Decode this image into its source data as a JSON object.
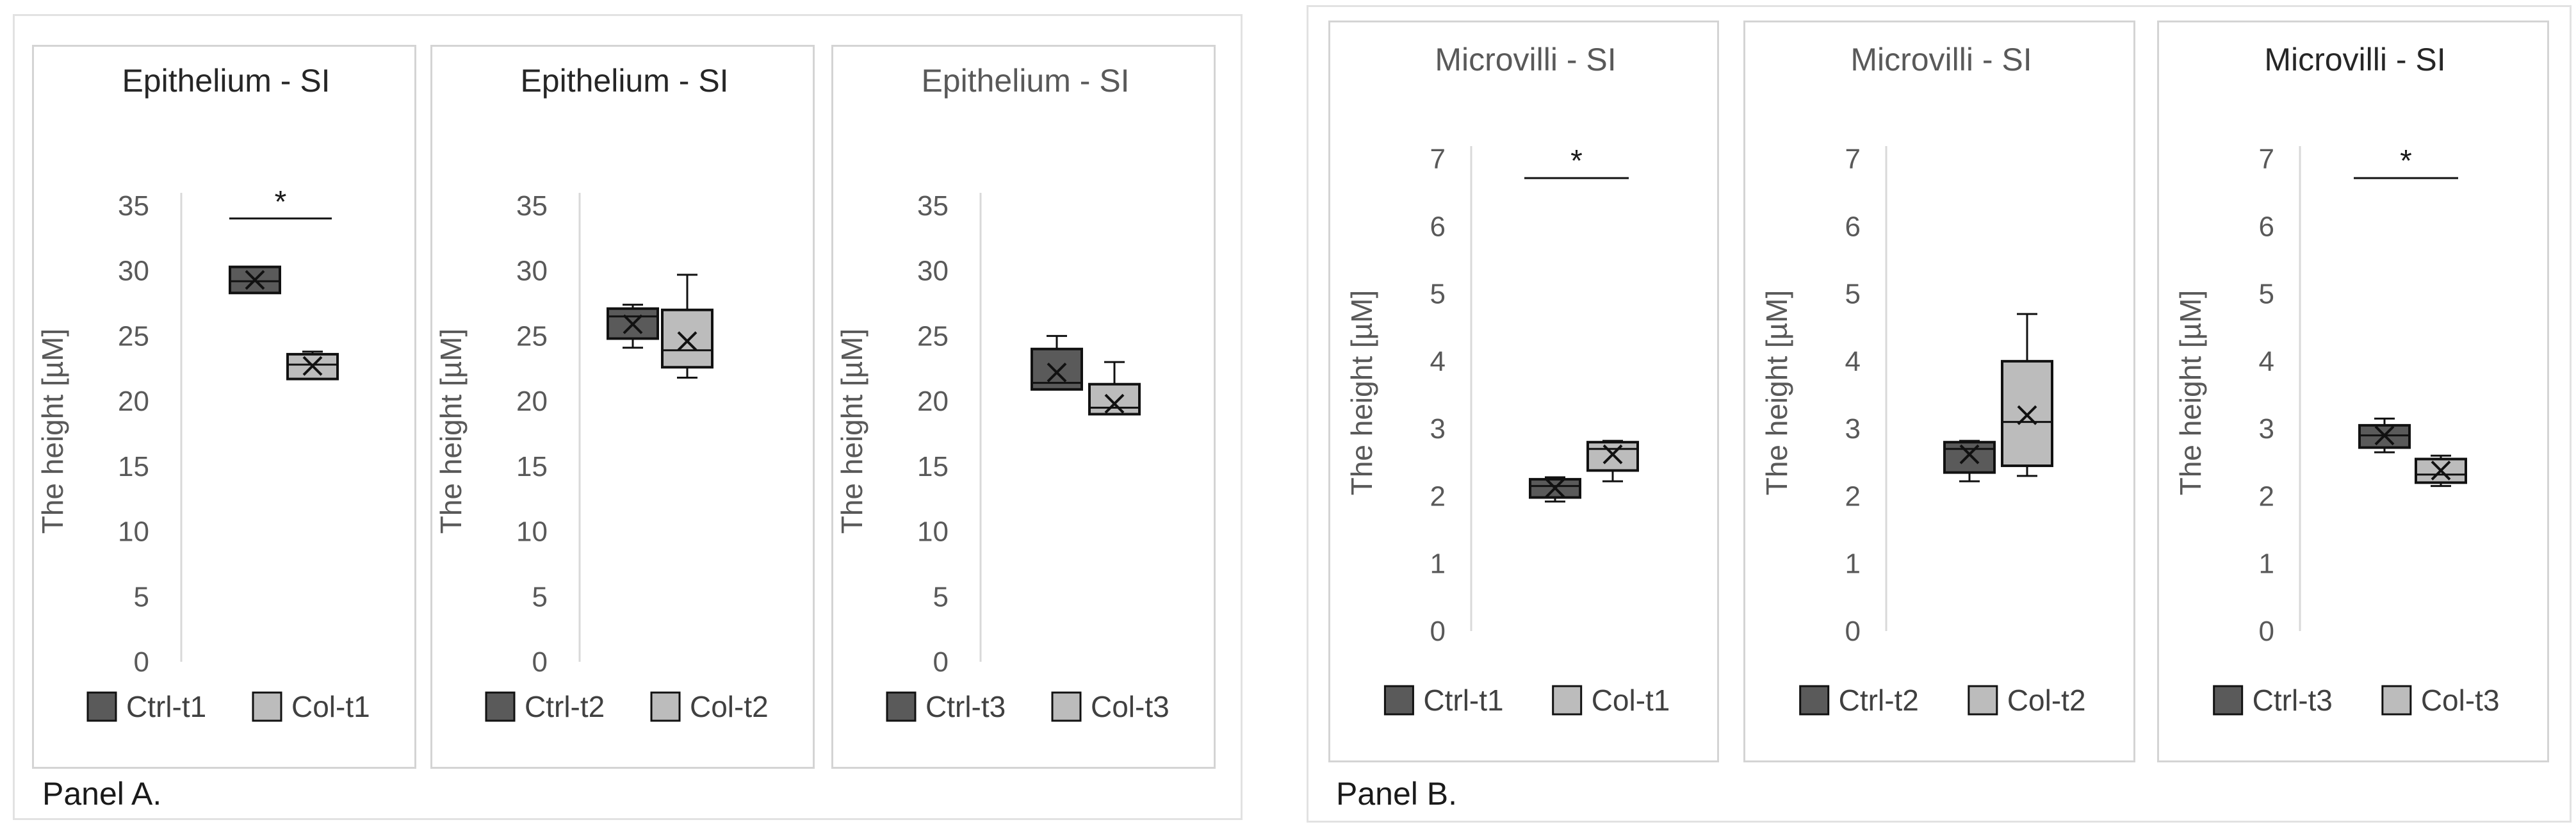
{
  "panels": {
    "a_label": "Panel A.",
    "b_label": "Panel B."
  },
  "colors": {
    "ctrl": "#5a5a5a",
    "col": "#bcbcbc",
    "stroke": "#111111",
    "axis": "#d9d9d9",
    "title_dark": "#262626",
    "title_light": "#595959"
  },
  "chart_data": [
    {
      "type": "boxplot",
      "panel": "A",
      "title": "Epithelium - SI",
      "ylabel": "The height [µM]",
      "ylim": [
        0,
        35
      ],
      "yticks": [
        "35",
        "30",
        "25",
        "20",
        "15",
        "10",
        "5",
        "0"
      ],
      "significance": "*",
      "series": [
        {
          "name": "Ctrl-t1",
          "min": 28.3,
          "q1": 28.3,
          "median": 29.2,
          "q3": 30.3,
          "max": 30.3,
          "mean": 29.3
        },
        {
          "name": "Col-t1",
          "min": 21.7,
          "q1": 21.7,
          "median": 22.8,
          "q3": 23.6,
          "max": 23.8,
          "mean": 22.7
        }
      ]
    },
    {
      "type": "boxplot",
      "panel": "A",
      "title": "Epithelium - SI",
      "ylabel": "The height [µM]",
      "ylim": [
        0,
        35
      ],
      "yticks": [
        "35",
        "30",
        "25",
        "20",
        "15",
        "10",
        "5",
        "0"
      ],
      "significance": "",
      "series": [
        {
          "name": "Ctrl-t2",
          "min": 24.1,
          "q1": 24.8,
          "median": 26.5,
          "q3": 27.1,
          "max": 27.4,
          "mean": 25.9
        },
        {
          "name": "Col-t2",
          "min": 21.8,
          "q1": 22.6,
          "median": 23.9,
          "q3": 27.0,
          "max": 29.7,
          "mean": 24.6
        }
      ]
    },
    {
      "type": "boxplot",
      "panel": "A",
      "title": "Epithelium - SI",
      "ylabel": "The height [µM]",
      "ylim": [
        0,
        35
      ],
      "yticks": [
        "35",
        "30",
        "25",
        "20",
        "15",
        "10",
        "5",
        "0"
      ],
      "significance": "",
      "series": [
        {
          "name": "Ctrl-t3",
          "min": 20.9,
          "q1": 20.9,
          "median": 21.4,
          "q3": 24.0,
          "max": 25.0,
          "mean": 22.2
        },
        {
          "name": "Col-t3",
          "min": 19.0,
          "q1": 19.0,
          "median": 19.5,
          "q3": 21.3,
          "max": 23.0,
          "mean": 19.8
        }
      ]
    },
    {
      "type": "boxplot",
      "panel": "B",
      "title": "Microvilli - SI",
      "ylabel": "The height [µM]",
      "ylim": [
        0,
        7
      ],
      "yticks": [
        "7",
        "6",
        "5",
        "4",
        "3",
        "2",
        "1",
        "0"
      ],
      "significance": "*",
      "series": [
        {
          "name": "Ctrl-t1",
          "min": 1.92,
          "q1": 1.98,
          "median": 2.15,
          "q3": 2.25,
          "max": 2.28,
          "mean": 2.12
        },
        {
          "name": "Col-t1",
          "min": 2.22,
          "q1": 2.38,
          "median": 2.7,
          "q3": 2.8,
          "max": 2.82,
          "mean": 2.62
        }
      ]
    },
    {
      "type": "boxplot",
      "panel": "B",
      "title": "Microvilli - SI",
      "ylabel": "The height [µM]",
      "ylim": [
        0,
        7
      ],
      "yticks": [
        "7",
        "6",
        "5",
        "4",
        "3",
        "2",
        "1",
        "0"
      ],
      "significance": "",
      "series": [
        {
          "name": "Ctrl-t2",
          "min": 2.22,
          "q1": 2.35,
          "median": 2.7,
          "q3": 2.8,
          "max": 2.82,
          "mean": 2.62
        },
        {
          "name": "Col-t2",
          "min": 2.3,
          "q1": 2.45,
          "median": 3.1,
          "q3": 4.0,
          "max": 4.7,
          "mean": 3.2
        }
      ]
    },
    {
      "type": "boxplot",
      "panel": "B",
      "title": "Microvilli - SI",
      "ylabel": "The height [µM]",
      "ylim": [
        0,
        7
      ],
      "yticks": [
        "7",
        "6",
        "5",
        "4",
        "3",
        "2",
        "1",
        "0"
      ],
      "significance": "*",
      "series": [
        {
          "name": "Ctrl-t3",
          "min": 2.65,
          "q1": 2.72,
          "median": 2.9,
          "q3": 3.05,
          "max": 3.15,
          "mean": 2.9
        },
        {
          "name": "Col-t3",
          "min": 2.15,
          "q1": 2.2,
          "median": 2.32,
          "q3": 2.55,
          "max": 2.6,
          "mean": 2.38
        }
      ]
    }
  ]
}
